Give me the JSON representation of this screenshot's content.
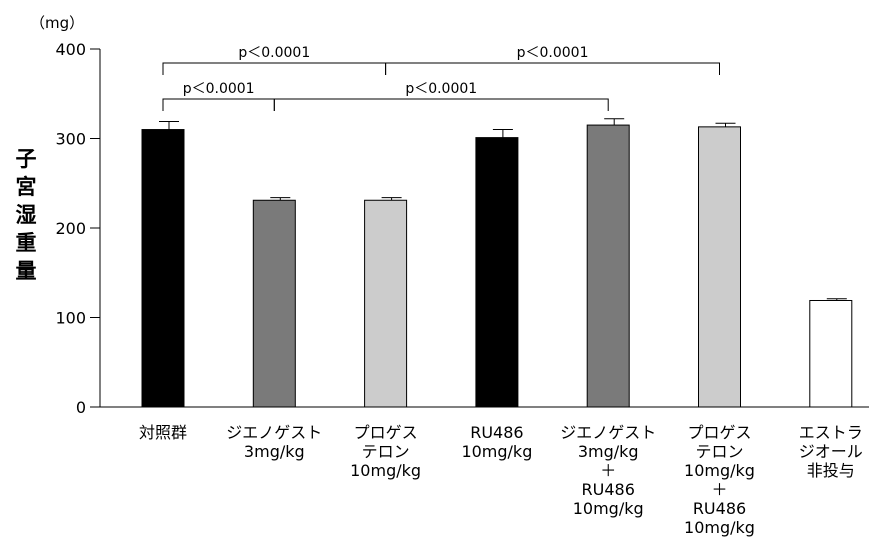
{
  "chart_data": {
    "type": "bar",
    "unit_label": "（mg）",
    "ylabel": "子宮湿重量",
    "ylim": [
      0,
      400
    ],
    "yticks": [
      0,
      100,
      200,
      300,
      400
    ],
    "categories": [
      [
        "対照群"
      ],
      [
        "ジエノゲスト",
        "3mg/kg"
      ],
      [
        "プロゲス",
        "テロン",
        "10mg/kg"
      ],
      [
        "RU486",
        "10mg/kg"
      ],
      [
        "ジエノゲスト",
        "3mg/kg",
        "＋",
        "RU486",
        "10mg/kg"
      ],
      [
        "プロゲス",
        "テロン",
        "10mg/kg",
        "＋",
        "RU486",
        "10mg/kg"
      ],
      [
        "エストラ",
        "ジオール",
        "非投与"
      ]
    ],
    "values": [
      310,
      231,
      231,
      301,
      315,
      313,
      119
    ],
    "errors": [
      9,
      3,
      3,
      9,
      7,
      4,
      2
    ],
    "colors": [
      "#000000",
      "#7a7a7a",
      "#cccccc",
      "#000000",
      "#7a7a7a",
      "#cccccc",
      "#ffffff"
    ],
    "significance": [
      {
        "from": 0,
        "to": 2,
        "label": "p＜0.0001"
      },
      {
        "from": 2,
        "to": 5,
        "label": "p＜0.0001"
      },
      {
        "from": 0,
        "to": 1,
        "label": "p＜0.0001"
      },
      {
        "from": 1,
        "to": 4,
        "label": "p＜0.0001"
      }
    ]
  }
}
